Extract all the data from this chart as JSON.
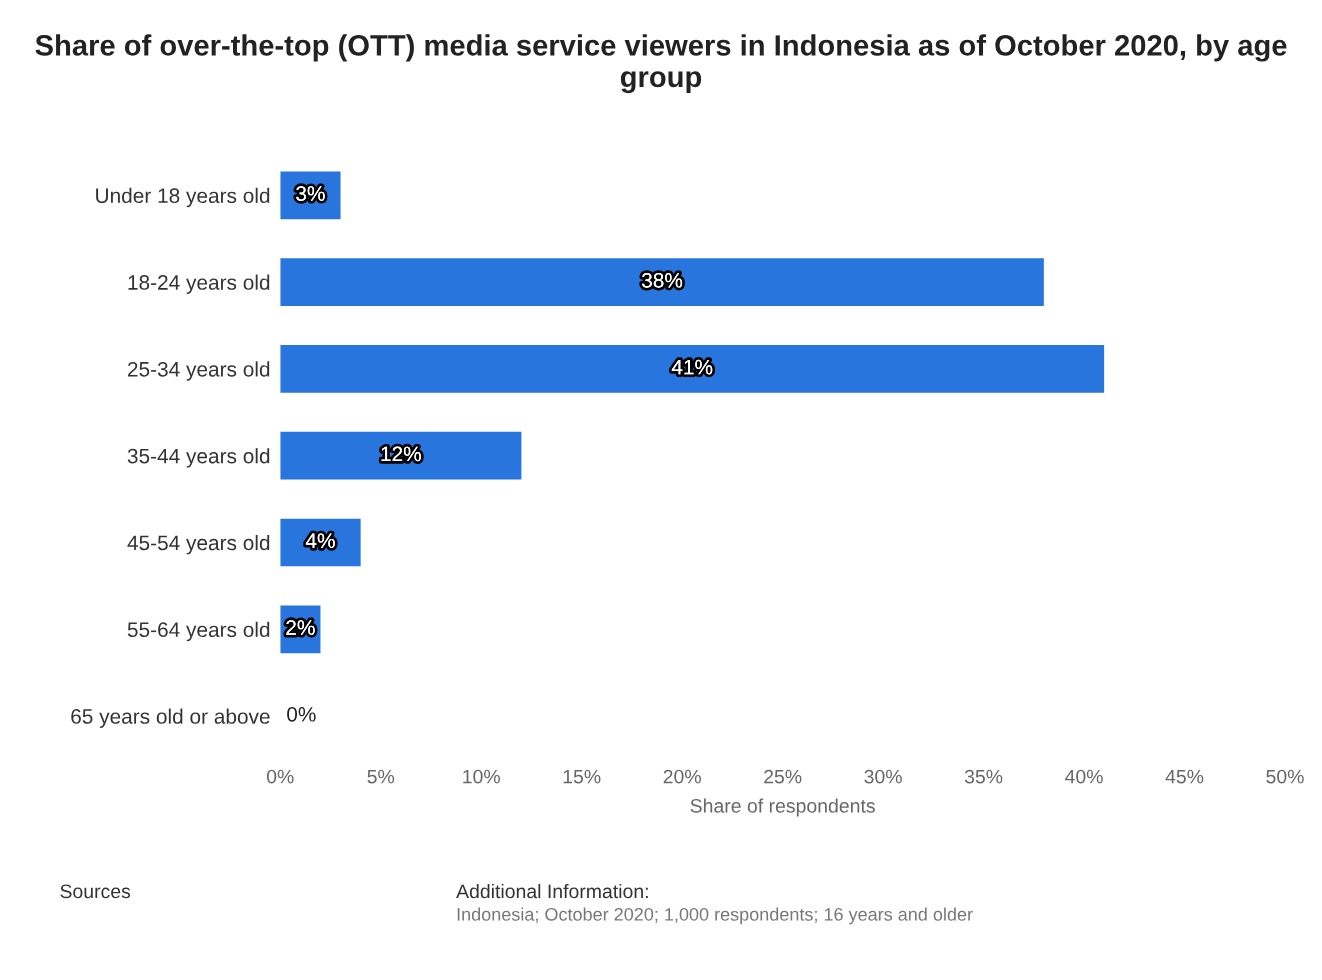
{
  "chart_data": {
    "type": "bar",
    "orientation": "horizontal",
    "title": "Share of over-the-top (OTT) media service viewers in Indonesia as of October 2020, by age group",
    "categories": [
      "Under 18 years old",
      "18-24 years old",
      "25-34 years old",
      "35-44 years old",
      "45-54 years old",
      "55-64 years old",
      "65 years old or above"
    ],
    "values": [
      3,
      38,
      41,
      12,
      4,
      2,
      0
    ],
    "value_labels": [
      "3%",
      "38%",
      "41%",
      "12%",
      "4%",
      "2%",
      "0%"
    ],
    "color": "#2876dd",
    "xlabel": "Share of respondents",
    "xlim": [
      0,
      50
    ],
    "xticks": [
      {
        "value": 0,
        "label": "0%"
      },
      {
        "value": 5,
        "label": "5%"
      },
      {
        "value": 10,
        "label": "10%"
      },
      {
        "value": 15,
        "label": "15%"
      },
      {
        "value": 20,
        "label": "20%"
      },
      {
        "value": 25,
        "label": "25%"
      },
      {
        "value": 30,
        "label": "30%"
      },
      {
        "value": 35,
        "label": "35%"
      },
      {
        "value": 40,
        "label": "40%"
      },
      {
        "value": 45,
        "label": "45%"
      },
      {
        "value": 50,
        "label": "50%"
      }
    ],
    "grid": false,
    "legend": false,
    "annotations": [
      "Sources",
      "Additional Information:",
      "Indonesia; October 2020; 1,000 respondents; 16 years and older"
    ]
  }
}
